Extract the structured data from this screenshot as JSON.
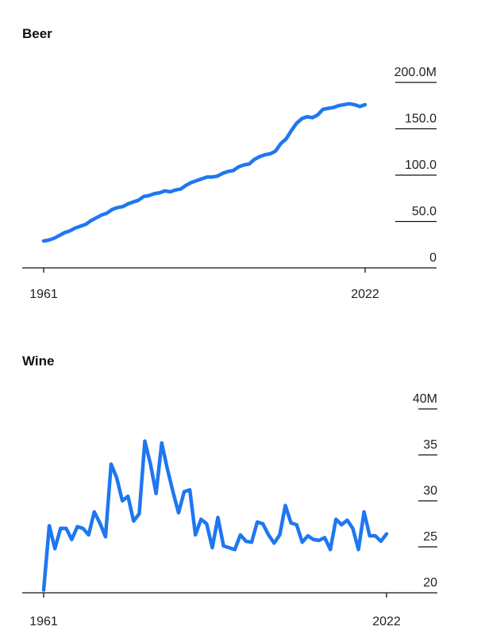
{
  "chart_data": [
    {
      "type": "line",
      "title": "Beer",
      "x": [
        1961,
        1962,
        1963,
        1964,
        1965,
        1966,
        1967,
        1968,
        1969,
        1970,
        1971,
        1972,
        1973,
        1974,
        1975,
        1976,
        1977,
        1978,
        1979,
        1980,
        1981,
        1982,
        1983,
        1984,
        1985,
        1986,
        1987,
        1988,
        1989,
        1990,
        1991,
        1992,
        1993,
        1994,
        1995,
        1996,
        1997,
        1998,
        1999,
        2000,
        2001,
        2002,
        2003,
        2004,
        2005,
        2006,
        2007,
        2008,
        2009,
        2010,
        2011,
        2012,
        2013,
        2014,
        2015,
        2016,
        2017,
        2018,
        2019,
        2020,
        2021,
        2022
      ],
      "xticks": [
        "1961",
        "2022"
      ],
      "series": [
        {
          "values": [
            29,
            30,
            32,
            35,
            38,
            40,
            43,
            45,
            47,
            51,
            54,
            57,
            59,
            63,
            65,
            66,
            69,
            71,
            73,
            77,
            78,
            80,
            81,
            83,
            82,
            84,
            85,
            89,
            92,
            94,
            96,
            98,
            98,
            99,
            102,
            104,
            105,
            109,
            111,
            112,
            117,
            120,
            122,
            123,
            126,
            134,
            139,
            148,
            156,
            161,
            163,
            162,
            165,
            171,
            172,
            173,
            175,
            176,
            177,
            176,
            174,
            176
          ],
          "color": "#1f77f0"
        }
      ],
      "yticks": [
        0,
        50,
        100,
        150,
        200
      ],
      "ytick_labels": [
        "0",
        "50.0",
        "100.0",
        "150.0",
        "200.0M"
      ],
      "ylim": [
        0,
        200
      ],
      "grid": true,
      "xlabel": "",
      "ylabel": ""
    },
    {
      "type": "line",
      "title": "Wine",
      "x": [
        1961,
        1962,
        1963,
        1964,
        1965,
        1966,
        1967,
        1968,
        1969,
        1970,
        1971,
        1972,
        1973,
        1974,
        1975,
        1976,
        1977,
        1978,
        1979,
        1980,
        1981,
        1982,
        1983,
        1984,
        1985,
        1986,
        1987,
        1988,
        1989,
        1990,
        1991,
        1992,
        1993,
        1994,
        1995,
        1996,
        1997,
        1998,
        1999,
        2000,
        2001,
        2002,
        2003,
        2004,
        2005,
        2006,
        2007,
        2008,
        2009,
        2010,
        2011,
        2012,
        2013,
        2014,
        2015,
        2016,
        2017,
        2018,
        2019,
        2020,
        2021,
        2022
      ],
      "xticks": [
        "1961",
        "2022"
      ],
      "series": [
        {
          "values": [
            20.3,
            27.3,
            24.8,
            27.0,
            27.0,
            25.8,
            27.2,
            27.0,
            26.3,
            28.8,
            27.6,
            26.1,
            34.0,
            32.5,
            30.0,
            30.5,
            27.8,
            28.6,
            36.5,
            34.0,
            30.8,
            36.3,
            33.5,
            31.0,
            28.7,
            31.0,
            31.2,
            26.3,
            28.0,
            27.5,
            24.9,
            28.2,
            25.1,
            24.9,
            24.7,
            26.3,
            25.6,
            25.5,
            27.7,
            27.5,
            26.3,
            25.4,
            26.3,
            29.5,
            27.6,
            27.4,
            25.5,
            26.2,
            25.8,
            25.7,
            26.0,
            24.7,
            28.0,
            27.4,
            27.9,
            27.0,
            24.7,
            28.8,
            26.2,
            26.2,
            25.6,
            26.4
          ],
          "color": "#1f77f0"
        }
      ],
      "yticks": [
        20,
        25,
        30,
        35,
        40
      ],
      "ytick_labels": [
        "20",
        "25",
        "30",
        "35",
        "40M"
      ],
      "ylim": [
        20,
        40
      ],
      "grid": true,
      "xlabel": "",
      "ylabel": ""
    }
  ]
}
